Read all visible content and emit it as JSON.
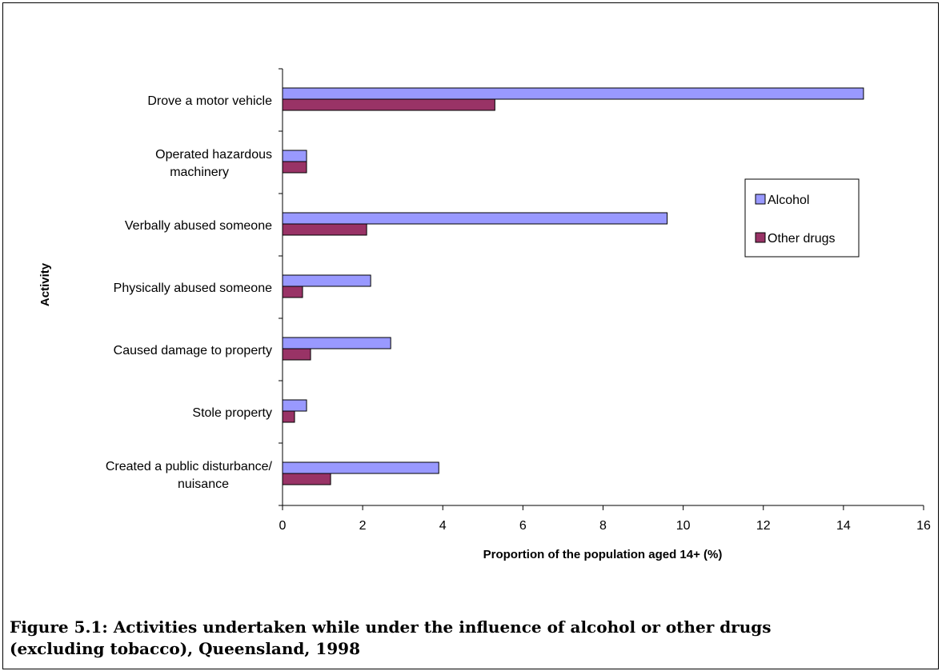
{
  "colors": {
    "alcohol": "#9999ff",
    "other_drugs": "#993366",
    "bar_stroke": "#000000",
    "axis": "#000000"
  },
  "chart_data": {
    "type": "bar",
    "orientation": "horizontal",
    "categories": [
      [
        "Drove a motor vehicle"
      ],
      [
        "Operated hazardous",
        "machinery"
      ],
      [
        "Verbally abused someone"
      ],
      [
        "Physically abused someone"
      ],
      [
        "Caused damage to property"
      ],
      [
        "Stole property"
      ],
      [
        "Created a public disturbance/",
        "nuisance"
      ]
    ],
    "series": [
      {
        "name": "Alcohol",
        "color": "#9999ff",
        "values": [
          14.5,
          0.6,
          9.6,
          2.2,
          2.7,
          0.6,
          3.9
        ]
      },
      {
        "name": "Other drugs",
        "color": "#993366",
        "values": [
          5.3,
          0.6,
          2.1,
          0.5,
          0.7,
          0.3,
          1.2
        ]
      }
    ],
    "xlabel": "Proportion of the population aged 14+ (%)",
    "ylabel": "Activity",
    "xlim": [
      0,
      16
    ],
    "xticks": [
      0,
      2,
      4,
      6,
      8,
      10,
      12,
      14,
      16
    ],
    "grid": false,
    "legend_position": "right"
  },
  "caption": {
    "line1": "Figure 5.1: Activities undertaken while under the influence of alcohol or other drugs",
    "line2": "(excluding tobacco), Queensland, 1998"
  }
}
